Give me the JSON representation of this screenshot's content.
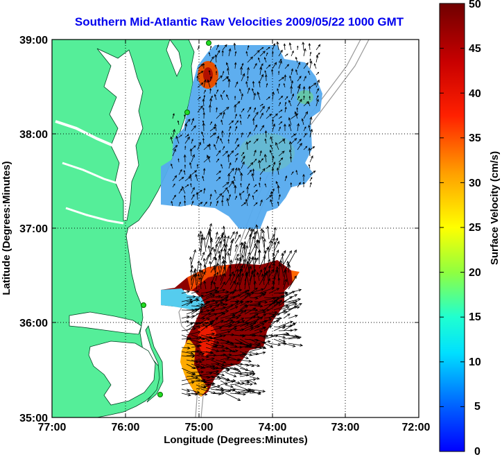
{
  "title": "Southern Mid-Atlantic Raw Velocities 2009/05/22 1000 GMT",
  "map": {
    "xlabel": "Longitude (Degrees:Minutes)",
    "ylabel": "Latitude (Degrees:Minutes)",
    "x_ticks": [
      "77:00",
      "76:00",
      "75:00",
      "74:00",
      "73:00",
      "72:00"
    ],
    "y_ticks": [
      "39:00",
      "38:00",
      "37:00",
      "36:00",
      "35:00"
    ],
    "x_range": [
      -77,
      -72
    ],
    "y_range": [
      35,
      39
    ],
    "land_color": "#55ee99",
    "grid": true
  },
  "colorbar": {
    "label": "Surface Velocity (cm/s)",
    "ticks": [
      "50",
      "45",
      "40",
      "35",
      "30",
      "25",
      "20",
      "15",
      "10",
      "5",
      "0"
    ],
    "range": [
      0,
      50
    ]
  }
}
